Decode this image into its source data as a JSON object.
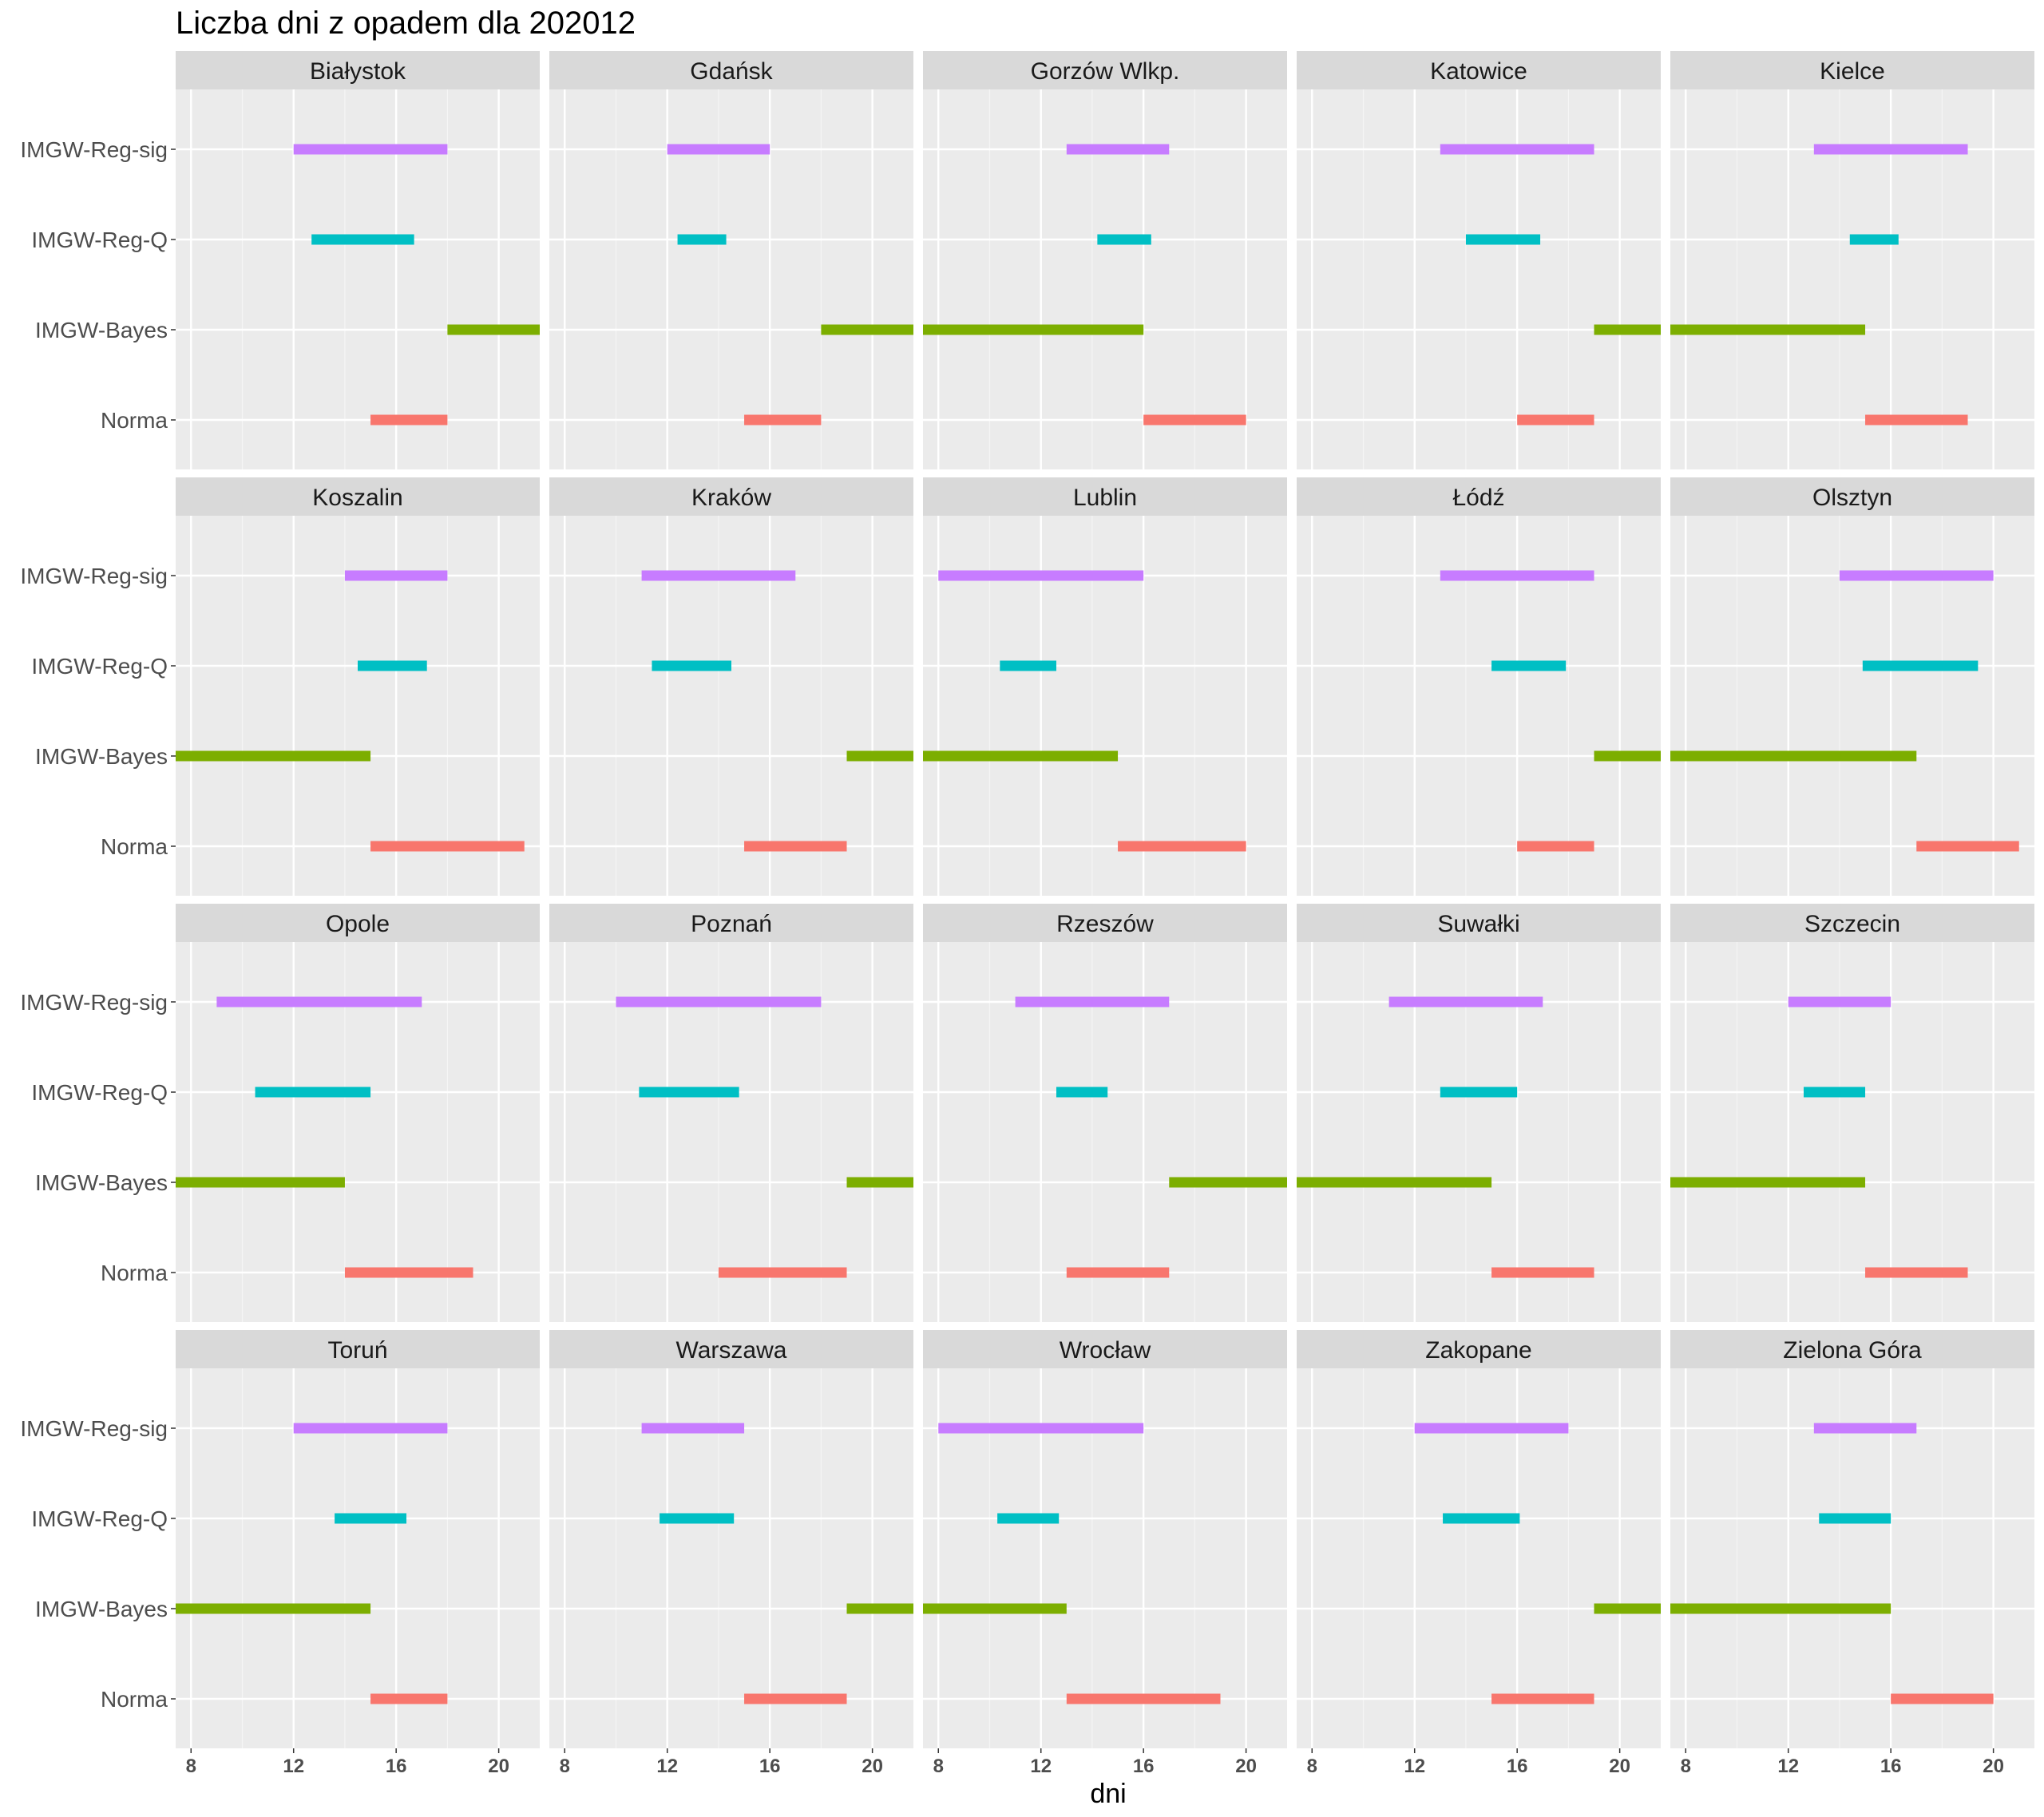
{
  "chart_data": {
    "type": "range-bar-facets",
    "title": "Liczba dni z opadem dla 202012",
    "xlabel": "dni",
    "ylabel": "",
    "xlim": [
      7.4,
      21.6
    ],
    "x_ticks": [
      8,
      12,
      16,
      20
    ],
    "x_minor_ticks": [
      10,
      14,
      18
    ],
    "categories": [
      "IMGW-Reg-sig",
      "IMGW-Reg-Q",
      "IMGW-Bayes",
      "Norma"
    ],
    "colors": {
      "IMGW-Reg-sig": "#C77CFF",
      "IMGW-Reg-Q": "#00BFC4",
      "IMGW-Bayes": "#7CAE00",
      "Norma": "#F8766D"
    },
    "grid": true,
    "legend": "none",
    "facets": [
      {
        "name": "Białystok",
        "ranges": {
          "IMGW-Reg-sig": [
            12,
            18
          ],
          "IMGW-Reg-Q": [
            12.7,
            16.7
          ],
          "IMGW-Bayes": [
            18,
            21.6
          ],
          "Norma": [
            15,
            18
          ]
        }
      },
      {
        "name": "Gdańsk",
        "ranges": {
          "IMGW-Reg-sig": [
            12,
            16
          ],
          "IMGW-Reg-Q": [
            12.4,
            14.3
          ],
          "IMGW-Bayes": [
            18,
            21.6
          ],
          "Norma": [
            15,
            18
          ]
        }
      },
      {
        "name": "Gorzów Wlkp.",
        "ranges": {
          "IMGW-Reg-sig": [
            13,
            17
          ],
          "IMGW-Reg-Q": [
            14.2,
            16.3
          ],
          "IMGW-Bayes": [
            7.4,
            16
          ],
          "Norma": [
            16,
            20
          ]
        }
      },
      {
        "name": "Katowice",
        "ranges": {
          "IMGW-Reg-sig": [
            13,
            19
          ],
          "IMGW-Reg-Q": [
            14,
            16.9
          ],
          "IMGW-Bayes": [
            19,
            21.6
          ],
          "Norma": [
            16,
            19
          ]
        }
      },
      {
        "name": "Kielce",
        "ranges": {
          "IMGW-Reg-sig": [
            13,
            19
          ],
          "IMGW-Reg-Q": [
            14.4,
            16.3
          ],
          "IMGW-Bayes": [
            7.4,
            15
          ],
          "Norma": [
            15,
            19
          ]
        }
      },
      {
        "name": "Koszalin",
        "ranges": {
          "IMGW-Reg-sig": [
            14,
            18
          ],
          "IMGW-Reg-Q": [
            14.5,
            17.2
          ],
          "IMGW-Bayes": [
            7.4,
            15
          ],
          "Norma": [
            15,
            21
          ]
        }
      },
      {
        "name": "Kraków",
        "ranges": {
          "IMGW-Reg-sig": [
            11,
            17
          ],
          "IMGW-Reg-Q": [
            11.4,
            14.5
          ],
          "IMGW-Bayes": [
            19,
            21.6
          ],
          "Norma": [
            15,
            19
          ]
        }
      },
      {
        "name": "Lublin",
        "ranges": {
          "IMGW-Reg-sig": [
            8,
            16
          ],
          "IMGW-Reg-Q": [
            10.4,
            12.6
          ],
          "IMGW-Bayes": [
            7.4,
            15
          ],
          "Norma": [
            15,
            20
          ]
        }
      },
      {
        "name": "Łódź",
        "ranges": {
          "IMGW-Reg-sig": [
            13,
            19
          ],
          "IMGW-Reg-Q": [
            15,
            17.9
          ],
          "IMGW-Bayes": [
            19,
            21.6
          ],
          "Norma": [
            16,
            19
          ]
        }
      },
      {
        "name": "Olsztyn",
        "ranges": {
          "IMGW-Reg-sig": [
            14,
            20
          ],
          "IMGW-Reg-Q": [
            14.9,
            19.4
          ],
          "IMGW-Bayes": [
            7.4,
            17
          ],
          "Norma": [
            17,
            21
          ]
        }
      },
      {
        "name": "Opole",
        "ranges": {
          "IMGW-Reg-sig": [
            9,
            17
          ],
          "IMGW-Reg-Q": [
            10.5,
            15
          ],
          "IMGW-Bayes": [
            7.4,
            14
          ],
          "Norma": [
            14,
            19
          ]
        }
      },
      {
        "name": "Poznań",
        "ranges": {
          "IMGW-Reg-sig": [
            10,
            18
          ],
          "IMGW-Reg-Q": [
            10.9,
            14.8
          ],
          "IMGW-Bayes": [
            19,
            21.6
          ],
          "Norma": [
            14,
            19
          ]
        }
      },
      {
        "name": "Rzeszów",
        "ranges": {
          "IMGW-Reg-sig": [
            11,
            17
          ],
          "IMGW-Reg-Q": [
            12.6,
            14.6
          ],
          "IMGW-Bayes": [
            17,
            21.6
          ],
          "Norma": [
            13,
            17
          ]
        }
      },
      {
        "name": "Suwałki",
        "ranges": {
          "IMGW-Reg-sig": [
            11,
            17
          ],
          "IMGW-Reg-Q": [
            13,
            16
          ],
          "IMGW-Bayes": [
            7.4,
            15
          ],
          "Norma": [
            15,
            19
          ]
        }
      },
      {
        "name": "Szczecin",
        "ranges": {
          "IMGW-Reg-sig": [
            12,
            16
          ],
          "IMGW-Reg-Q": [
            12.6,
            15
          ],
          "IMGW-Bayes": [
            7.4,
            15
          ],
          "Norma": [
            15,
            19
          ]
        }
      },
      {
        "name": "Toruń",
        "ranges": {
          "IMGW-Reg-sig": [
            12,
            18
          ],
          "IMGW-Reg-Q": [
            13.6,
            16.4
          ],
          "IMGW-Bayes": [
            7.4,
            15
          ],
          "Norma": [
            15,
            18
          ]
        }
      },
      {
        "name": "Warszawa",
        "ranges": {
          "IMGW-Reg-sig": [
            11,
            15
          ],
          "IMGW-Reg-Q": [
            11.7,
            14.6
          ],
          "IMGW-Bayes": [
            19,
            21.6
          ],
          "Norma": [
            15,
            19
          ]
        }
      },
      {
        "name": "Wrocław",
        "ranges": {
          "IMGW-Reg-sig": [
            8,
            16
          ],
          "IMGW-Reg-Q": [
            10.3,
            12.7
          ],
          "IMGW-Bayes": [
            7.4,
            13
          ],
          "Norma": [
            13,
            19
          ]
        }
      },
      {
        "name": "Zakopane",
        "ranges": {
          "IMGW-Reg-sig": [
            12,
            18
          ],
          "IMGW-Reg-Q": [
            13.1,
            16.1
          ],
          "IMGW-Bayes": [
            19,
            21.6
          ],
          "Norma": [
            15,
            19
          ]
        }
      },
      {
        "name": "Zielona Góra",
        "ranges": {
          "IMGW-Reg-sig": [
            13,
            17
          ],
          "IMGW-Reg-Q": [
            13.2,
            16
          ],
          "IMGW-Bayes": [
            7.4,
            16
          ],
          "Norma": [
            16,
            20
          ]
        }
      }
    ]
  }
}
